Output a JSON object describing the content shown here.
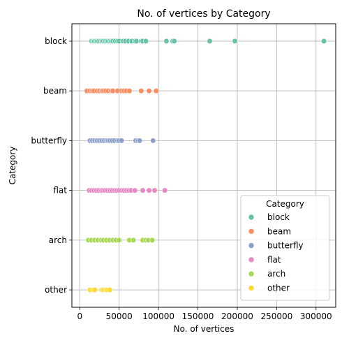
{
  "chart_data": {
    "type": "scatter",
    "title": "No. of vertices by Category",
    "xlabel": "No. of vertices",
    "ylabel": "Category",
    "xlim": [
      -10000,
      325000
    ],
    "x_ticks": [
      0,
      50000,
      100000,
      150000,
      200000,
      250000,
      300000
    ],
    "x_tick_labels": [
      "0",
      "50000",
      "100000",
      "150000",
      "200000",
      "250000",
      "300000"
    ],
    "categories": [
      "block",
      "beam",
      "butterfly",
      "flat",
      "arch",
      "other"
    ],
    "grid": true,
    "legend": {
      "title": "Category",
      "placement": "lower-right",
      "entries": [
        "block",
        "beam",
        "butterfly",
        "flat",
        "arch",
        "other"
      ]
    },
    "colors": {
      "block": "#66c2a5",
      "beam": "#fc8d62",
      "butterfly": "#8da0cb",
      "flat": "#e78ac3",
      "arch": "#a6d854",
      "other": "#ffd92f"
    },
    "series": [
      {
        "name": "block",
        "category": "block",
        "x": [
          15000,
          17000,
          18500,
          20000,
          22000,
          24000,
          26000,
          28000,
          30000,
          32000,
          34000,
          36000,
          38000,
          40000,
          42000,
          45000,
          48000,
          50000,
          55000,
          58000,
          62000,
          66000,
          70000,
          72000,
          78000,
          80000,
          84000,
          110000,
          118000,
          120000,
          165000,
          197000,
          310000
        ]
      },
      {
        "name": "beam",
        "category": "beam",
        "x": [
          9000,
          13000,
          16000,
          18000,
          22000,
          25000,
          28000,
          30000,
          33000,
          36000,
          40000,
          42000,
          48000,
          53000,
          56000,
          59000,
          63000,
          78000,
          88000,
          97000
        ]
      },
      {
        "name": "butterfly",
        "category": "butterfly",
        "x": [
          13000,
          16000,
          19000,
          22000,
          25000,
          28000,
          31000,
          34000,
          36000,
          38000,
          41000,
          44000,
          48000,
          50000,
          53000,
          71000,
          74000,
          76000,
          93000
        ]
      },
      {
        "name": "flat",
        "category": "flat",
        "x": [
          12000,
          15000,
          18000,
          21000,
          24000,
          27000,
          29000,
          32000,
          35000,
          38000,
          41000,
          44000,
          47000,
          50000,
          53000,
          56000,
          59000,
          62000,
          65000,
          70000,
          80000,
          88000,
          95000,
          108000
        ]
      },
      {
        "name": "arch",
        "category": "arch",
        "x": [
          11000,
          15000,
          19000,
          23000,
          27000,
          30000,
          34000,
          38000,
          42000,
          46000,
          50000,
          63000,
          68000,
          80000,
          84000,
          87000,
          92000
        ]
      },
      {
        "name": "other",
        "category": "other",
        "x": [
          13000,
          17000,
          19000,
          28000,
          30000,
          33000,
          35000,
          38000
        ]
      }
    ]
  }
}
